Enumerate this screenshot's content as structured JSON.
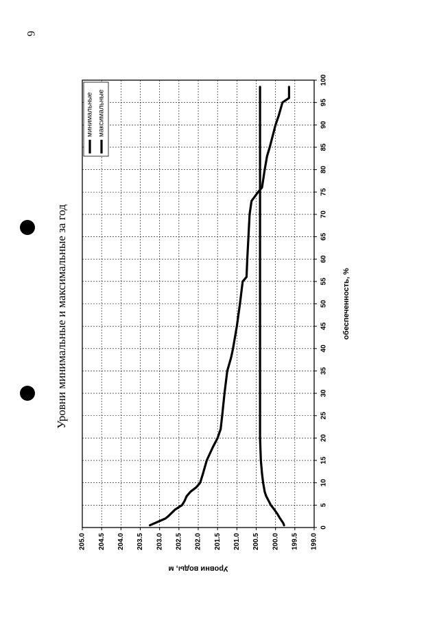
{
  "page": {
    "number": "6"
  },
  "chart_data": {
    "type": "line",
    "title": "Уровни минимальные и максимальные за год",
    "xlabel": "обеспеченность, %",
    "ylabel": "Уровни воды, м",
    "xlim": [
      0,
      100
    ],
    "ylim": [
      199.0,
      205.0
    ],
    "x_ticks": [
      "0",
      "5",
      "10",
      "15",
      "20",
      "25",
      "30",
      "35",
      "40",
      "45",
      "50",
      "55",
      "60",
      "65",
      "70",
      "75",
      "80",
      "85",
      "90",
      "95",
      "100"
    ],
    "y_ticks": [
      "205.0",
      "204.5",
      "204.0",
      "203.5",
      "203.0",
      "202.5",
      "202.0",
      "201.5",
      "201.0",
      "200.5",
      "200.0",
      "199.5",
      "199.0"
    ],
    "grid": true,
    "legend_position": "top-right",
    "orientation": "rotated-90-ccw",
    "series": [
      {
        "name": "минимальные",
        "color": "#000000",
        "x": [
          0.5,
          1,
          2,
          3,
          4,
          5,
          6,
          7,
          8,
          10,
          12,
          15,
          20,
          25,
          30,
          35,
          40,
          45,
          50,
          55,
          60,
          65,
          70,
          75,
          80,
          85,
          90,
          95,
          98.5
        ],
        "y": [
          199.78,
          199.8,
          199.88,
          199.95,
          200.03,
          200.12,
          200.18,
          200.24,
          200.28,
          200.32,
          200.35,
          200.38,
          200.4,
          200.4,
          200.4,
          200.4,
          200.4,
          200.4,
          200.4,
          200.4,
          200.4,
          200.4,
          200.4,
          200.4,
          200.4,
          200.4,
          200.4,
          200.4,
          200.4
        ]
      },
      {
        "name": "максимальные",
        "color": "#000000",
        "x": [
          0.5,
          2,
          2.5,
          4,
          5,
          6,
          7,
          8,
          9,
          10,
          12,
          15,
          18,
          20,
          22,
          25,
          30,
          35,
          38,
          40,
          45,
          50,
          55,
          56,
          60,
          65,
          70,
          73,
          75,
          76,
          80,
          83,
          85,
          90,
          92,
          95,
          96,
          98.5
        ],
        "y": [
          203.25,
          202.85,
          202.78,
          202.6,
          202.42,
          202.35,
          202.3,
          202.2,
          202.05,
          201.95,
          201.88,
          201.78,
          201.62,
          201.5,
          201.42,
          201.38,
          201.32,
          201.25,
          201.15,
          201.1,
          201.0,
          200.92,
          200.85,
          200.75,
          200.73,
          200.7,
          200.67,
          200.62,
          200.45,
          200.35,
          200.28,
          200.22,
          200.15,
          200.0,
          199.92,
          199.82,
          199.65,
          199.65
        ]
      }
    ]
  }
}
